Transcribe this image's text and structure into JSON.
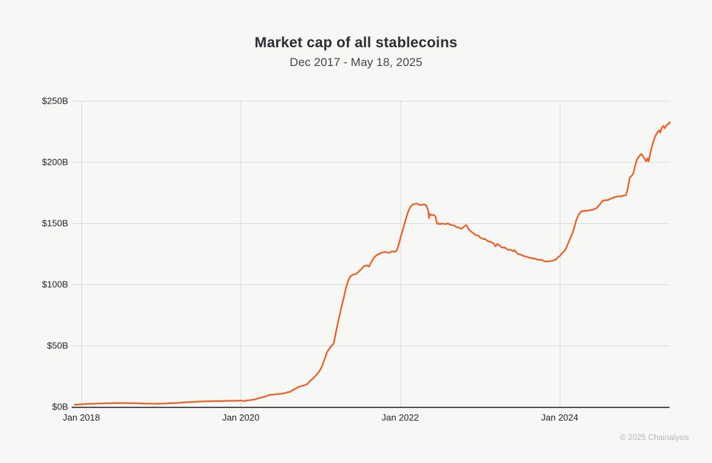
{
  "header": {
    "title": "Market cap of all stablecoins",
    "subtitle": "Dec 2017 - May 18, 2025"
  },
  "footer": {
    "credit": "© 2025 Chainalysis"
  },
  "chart_data": {
    "type": "line",
    "title": "Market cap of all stablecoins",
    "subtitle": "Dec 2017 - May 18, 2025",
    "unit": "USD billions",
    "ylabel": "",
    "xlabel": "",
    "ylim": [
      0,
      250
    ],
    "x_range": [
      "2017-12-01",
      "2025-05-18"
    ],
    "grid": true,
    "legend_position": "none",
    "line_color": "#f05a1e",
    "grid_color": "#dcdcdc",
    "axis_color": "#515156",
    "label_color": "#222227",
    "y_ticks": [
      {
        "value": 0,
        "label": "$0B"
      },
      {
        "value": 50,
        "label": "$50B"
      },
      {
        "value": 100,
        "label": "$100B"
      },
      {
        "value": 150,
        "label": "$150B"
      },
      {
        "value": 200,
        "label": "$200B"
      },
      {
        "value": 250,
        "label": "$250B"
      }
    ],
    "x_ticks": [
      {
        "date": "2018-01-01",
        "label": "Jan 2018"
      },
      {
        "date": "2020-01-01",
        "label": "Jan 2020"
      },
      {
        "date": "2022-01-01",
        "label": "Jan 2022"
      },
      {
        "date": "2024-01-01",
        "label": "Jan 2024"
      }
    ],
    "points": [
      [
        "2017-12-01",
        1.5
      ],
      [
        "2018-01-01",
        2.0
      ],
      [
        "2018-02-01",
        2.3
      ],
      [
        "2018-03-15",
        2.6
      ],
      [
        "2018-05-01",
        2.8
      ],
      [
        "2018-06-15",
        3.0
      ],
      [
        "2018-08-01",
        3.0
      ],
      [
        "2018-09-15",
        2.8
      ],
      [
        "2018-11-01",
        2.5
      ],
      [
        "2018-12-15",
        2.4
      ],
      [
        "2019-02-01",
        2.7
      ],
      [
        "2019-03-15",
        3.1
      ],
      [
        "2019-05-01",
        3.7
      ],
      [
        "2019-06-15",
        4.1
      ],
      [
        "2019-08-01",
        4.4
      ],
      [
        "2019-09-15",
        4.6
      ],
      [
        "2019-11-01",
        4.8
      ],
      [
        "2019-12-15",
        4.9
      ],
      [
        "2020-01-01",
        5.0
      ],
      [
        "2020-01-20",
        4.7
      ],
      [
        "2020-02-10",
        5.3
      ],
      [
        "2020-03-01",
        5.8
      ],
      [
        "2020-03-20",
        6.8
      ],
      [
        "2020-04-10",
        7.8
      ],
      [
        "2020-05-01",
        9.0
      ],
      [
        "2020-05-20",
        9.8
      ],
      [
        "2020-06-10",
        10.2
      ],
      [
        "2020-07-01",
        10.4
      ],
      [
        "2020-07-20",
        11.0
      ],
      [
        "2020-08-10",
        12.0
      ],
      [
        "2020-09-01",
        14.0
      ],
      [
        "2020-09-20",
        16.0
      ],
      [
        "2020-10-10",
        17.0
      ],
      [
        "2020-11-01",
        18.5
      ],
      [
        "2020-11-20",
        22.0
      ],
      [
        "2020-12-10",
        25.5
      ],
      [
        "2020-12-24",
        28.5
      ],
      [
        "2021-01-08",
        33.0
      ],
      [
        "2021-01-20",
        39.0
      ],
      [
        "2021-02-01",
        45.0
      ],
      [
        "2021-02-15",
        48.5
      ],
      [
        "2021-03-01",
        52.0
      ],
      [
        "2021-03-12",
        62.0
      ],
      [
        "2021-03-24",
        72.0
      ],
      [
        "2021-04-05",
        81.0
      ],
      [
        "2021-04-16",
        89.0
      ],
      [
        "2021-04-26",
        97.0
      ],
      [
        "2021-05-06",
        103.0
      ],
      [
        "2021-05-16",
        106.5
      ],
      [
        "2021-05-28",
        108.0
      ],
      [
        "2021-06-10",
        108.5
      ],
      [
        "2021-06-22",
        110.0
      ],
      [
        "2021-07-06",
        112.5
      ],
      [
        "2021-07-20",
        115.0
      ],
      [
        "2021-08-01",
        115.5
      ],
      [
        "2021-08-10",
        114.5
      ],
      [
        "2021-08-20",
        118.0
      ],
      [
        "2021-09-01",
        121.5
      ],
      [
        "2021-09-12",
        123.5
      ],
      [
        "2021-09-22",
        124.5
      ],
      [
        "2021-10-02",
        125.5
      ],
      [
        "2021-10-12",
        126.0
      ],
      [
        "2021-10-22",
        126.5
      ],
      [
        "2021-11-03",
        126.0
      ],
      [
        "2021-11-14",
        125.8
      ],
      [
        "2021-11-25",
        127.0
      ],
      [
        "2021-12-06",
        126.5
      ],
      [
        "2021-12-15",
        127.5
      ],
      [
        "2021-12-22",
        131.0
      ],
      [
        "2021-12-29",
        135.5
      ],
      [
        "2022-01-03",
        139.0
      ],
      [
        "2022-01-10",
        143.0
      ],
      [
        "2022-01-18",
        148.0
      ],
      [
        "2022-01-26",
        153.0
      ],
      [
        "2022-02-04",
        158.0
      ],
      [
        "2022-02-13",
        162.0
      ],
      [
        "2022-02-22",
        164.5
      ],
      [
        "2022-03-05",
        165.5
      ],
      [
        "2022-03-16",
        166.0
      ],
      [
        "2022-03-28",
        165.0
      ],
      [
        "2022-04-08",
        164.8
      ],
      [
        "2022-04-18",
        165.5
      ],
      [
        "2022-04-29",
        164.5
      ],
      [
        "2022-05-08",
        160.0
      ],
      [
        "2022-05-11",
        154.0
      ],
      [
        "2022-05-14",
        157.5
      ],
      [
        "2022-05-22",
        156.5
      ],
      [
        "2022-06-02",
        156.8
      ],
      [
        "2022-06-10",
        155.5
      ],
      [
        "2022-06-14",
        152.0
      ],
      [
        "2022-06-18",
        149.5
      ],
      [
        "2022-07-01",
        149.0
      ],
      [
        "2022-07-14",
        149.5
      ],
      [
        "2022-07-28",
        149.3
      ],
      [
        "2022-08-10",
        149.5
      ],
      [
        "2022-08-24",
        148.5
      ],
      [
        "2022-09-06",
        148.0
      ],
      [
        "2022-09-20",
        146.5
      ],
      [
        "2022-10-04",
        145.5
      ],
      [
        "2022-10-18",
        147.0
      ],
      [
        "2022-11-01",
        148.3
      ],
      [
        "2022-11-10",
        145.0
      ],
      [
        "2022-11-22",
        143.0
      ],
      [
        "2022-12-06",
        141.0
      ],
      [
        "2022-12-20",
        140.0
      ],
      [
        "2023-01-03",
        138.0
      ],
      [
        "2023-01-18",
        137.0
      ],
      [
        "2023-02-01",
        136.0
      ],
      [
        "2023-02-15",
        135.0
      ],
      [
        "2023-03-01",
        133.8
      ],
      [
        "2023-03-11",
        131.0
      ],
      [
        "2023-03-20",
        133.0
      ],
      [
        "2023-04-01",
        131.5
      ],
      [
        "2023-04-15",
        130.0
      ],
      [
        "2023-05-01",
        129.0
      ],
      [
        "2023-05-16",
        128.3
      ],
      [
        "2023-06-01",
        127.0
      ],
      [
        "2023-06-08",
        128.0
      ],
      [
        "2023-06-16",
        126.0
      ],
      [
        "2023-07-01",
        124.5
      ],
      [
        "2023-07-16",
        123.5
      ],
      [
        "2023-08-01",
        122.5
      ],
      [
        "2023-08-16",
        121.5
      ],
      [
        "2023-09-01",
        121.0
      ],
      [
        "2023-09-16",
        120.5
      ],
      [
        "2023-10-01",
        120.0
      ],
      [
        "2023-10-16",
        119.3
      ],
      [
        "2023-11-01",
        118.8
      ],
      [
        "2023-11-16",
        119.0
      ],
      [
        "2023-12-01",
        119.5
      ],
      [
        "2023-12-16",
        120.5
      ],
      [
        "2024-01-01",
        123.0
      ],
      [
        "2024-01-16",
        126.0
      ],
      [
        "2024-02-01",
        130.0
      ],
      [
        "2024-02-15",
        136.0
      ],
      [
        "2024-03-01",
        143.0
      ],
      [
        "2024-03-15",
        152.0
      ],
      [
        "2024-04-01",
        158.0
      ],
      [
        "2024-04-10",
        160.0
      ],
      [
        "2024-04-24",
        160.3
      ],
      [
        "2024-05-08",
        160.5
      ],
      [
        "2024-05-22",
        161.0
      ],
      [
        "2024-06-05",
        161.5
      ],
      [
        "2024-06-19",
        162.5
      ],
      [
        "2024-07-03",
        165.5
      ],
      [
        "2024-07-17",
        168.5
      ],
      [
        "2024-08-01",
        169.0
      ],
      [
        "2024-08-15",
        169.5
      ],
      [
        "2024-09-01",
        170.5
      ],
      [
        "2024-09-15",
        171.5
      ],
      [
        "2024-10-01",
        172.0
      ],
      [
        "2024-10-16",
        172.5
      ],
      [
        "2024-11-01",
        173.0
      ],
      [
        "2024-11-10",
        180.0
      ],
      [
        "2024-11-18",
        187.5
      ],
      [
        "2024-11-26",
        188.5
      ],
      [
        "2024-12-04",
        191.0
      ],
      [
        "2024-12-12",
        197.0
      ],
      [
        "2024-12-20",
        202.0
      ],
      [
        "2025-01-01",
        205.0
      ],
      [
        "2025-01-10",
        206.5
      ],
      [
        "2025-01-20",
        204.0
      ],
      [
        "2025-02-01",
        200.5
      ],
      [
        "2025-02-07",
        203.0
      ],
      [
        "2025-02-12",
        200.5
      ],
      [
        "2025-02-20",
        207.0
      ],
      [
        "2025-03-01",
        215.0
      ],
      [
        "2025-03-10",
        220.0
      ],
      [
        "2025-03-20",
        223.5
      ],
      [
        "2025-04-01",
        226.0
      ],
      [
        "2025-04-05",
        224.0
      ],
      [
        "2025-04-12",
        228.0
      ],
      [
        "2025-04-20",
        229.5
      ],
      [
        "2025-04-25",
        227.5
      ],
      [
        "2025-05-05",
        230.5
      ],
      [
        "2025-05-12",
        231.0
      ],
      [
        "2025-05-18",
        232.5
      ]
    ]
  }
}
